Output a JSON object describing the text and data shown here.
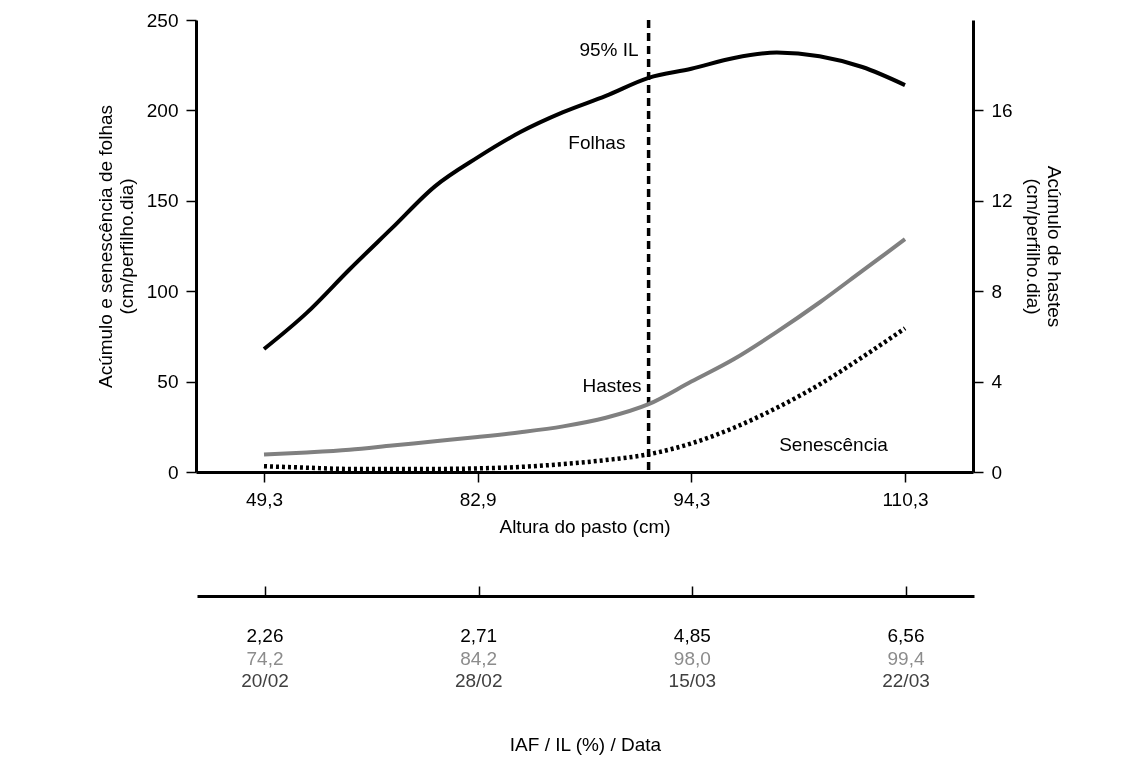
{
  "chart_data": [
    {
      "type": "line",
      "xlabel": "Altura do pasto (cm)",
      "ylabel": "Acúmulo e senescência de folhas\n(cm/perfilho.dia)",
      "y2label": "Acúmulo de hastes\n(cm/perfilho.dia)",
      "categories": [
        "49,3",
        null,
        null,
        null,
        null,
        "82,9",
        null,
        null,
        null,
        null,
        "94,3",
        null,
        null,
        null,
        null,
        "110,3"
      ],
      "ylim": [
        0,
        250
      ],
      "yticks": [
        0,
        50,
        100,
        150,
        200,
        250
      ],
      "y2lim": [
        0,
        20
      ],
      "y2ticks": [
        0,
        4,
        8,
        12,
        16
      ],
      "annotations": [
        "95% IL"
      ],
      "series": [
        {
          "name": "Folhas",
          "color": "#000000",
          "line_style": "solid",
          "values": [
            68,
            88,
            112,
            135,
            158,
            174,
            188,
            199,
            208,
            218,
            223,
            229,
            232,
            230,
            224,
            214
          ]
        },
        {
          "name": "Hastes",
          "color": "#808080",
          "line_style": "solid",
          "axis": "y2",
          "values": [
            0.77,
            0.86,
            0.98,
            1.17,
            1.36,
            1.55,
            1.76,
            2.02,
            2.4,
            3.0,
            4.0,
            5.0,
            6.2,
            7.5,
            8.9,
            10.3
          ]
        },
        {
          "name": "Senescência",
          "color": "#000000",
          "line_style": "dotted",
          "values": [
            3.2,
            2.4,
            1.7,
            1.7,
            1.7,
            2.0,
            2.8,
            4.4,
            6.6,
            9.8,
            15.8,
            24.5,
            35.5,
            48.4,
            63.5,
            79.5
          ]
        }
      ]
    },
    {
      "type": "other",
      "xlabel": "IAF / IL (%) / Data",
      "categories": [
        "2,26\n74,2\n20/02",
        "2,71\n84,2\n28/02",
        "4,85\n98,0\n15/03",
        "6,56\n99,4\n22/03"
      ]
    }
  ]
}
